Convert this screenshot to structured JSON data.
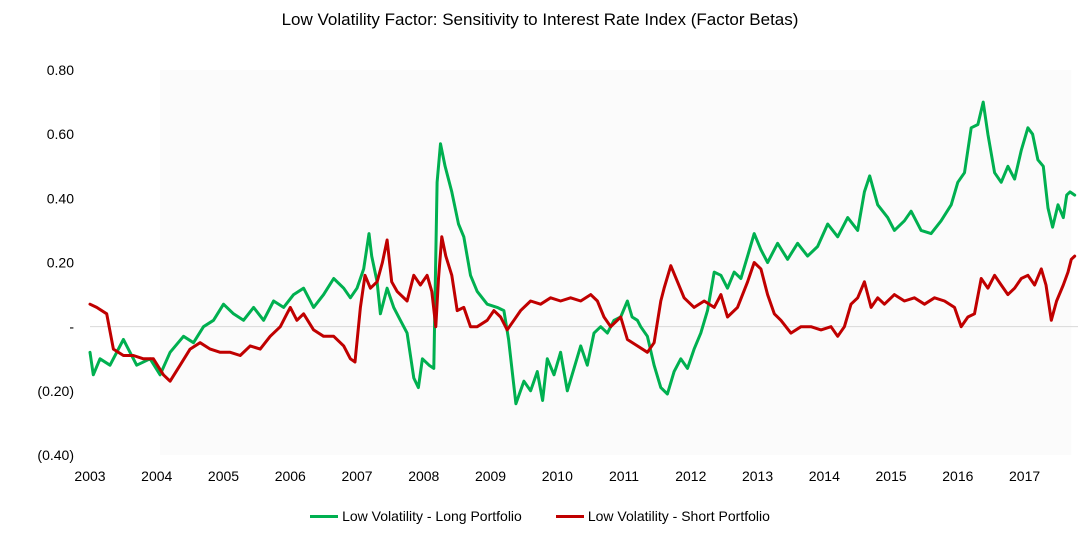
{
  "chart_data": {
    "type": "line",
    "title": "Low Volatility Factor: Sensitivity to Interest Rate Index (Factor Betas)",
    "xlabel": "",
    "ylabel": "",
    "xlim": [
      2003.0,
      2017.8
    ],
    "ylim": [
      -0.4,
      0.8
    ],
    "y_ticks": [
      {
        "value": 0.8,
        "label": "0.80"
      },
      {
        "value": 0.6,
        "label": "0.60"
      },
      {
        "value": 0.4,
        "label": "0.40"
      },
      {
        "value": 0.2,
        "label": "0.20"
      },
      {
        "value": 0.0,
        "label": "-"
      },
      {
        "value": -0.2,
        "label": "(0.20)"
      },
      {
        "value": -0.4,
        "label": "(0.40)"
      }
    ],
    "x_ticks": [
      "2003",
      "2004",
      "2005",
      "2006",
      "2007",
      "2008",
      "2009",
      "2010",
      "2011",
      "2012",
      "2013",
      "2014",
      "2015",
      "2016",
      "2017"
    ],
    "grid": false,
    "zero_line": true,
    "legend_position": "bottom",
    "series": [
      {
        "name": "Low Volatility - Long Portfolio",
        "color": "#00b050",
        "points": [
          [
            2003.0,
            -0.08
          ],
          [
            2003.05,
            -0.15
          ],
          [
            2003.15,
            -0.1
          ],
          [
            2003.3,
            -0.12
          ],
          [
            2003.5,
            -0.04
          ],
          [
            2003.7,
            -0.12
          ],
          [
            2003.9,
            -0.1
          ],
          [
            2004.05,
            -0.15
          ],
          [
            2004.2,
            -0.08
          ],
          [
            2004.4,
            -0.03
          ],
          [
            2004.55,
            -0.05
          ],
          [
            2004.7,
            0.0
          ],
          [
            2004.85,
            0.02
          ],
          [
            2005.0,
            0.07
          ],
          [
            2005.15,
            0.04
          ],
          [
            2005.3,
            0.02
          ],
          [
            2005.45,
            0.06
          ],
          [
            2005.6,
            0.02
          ],
          [
            2005.75,
            0.08
          ],
          [
            2005.9,
            0.06
          ],
          [
            2006.05,
            0.1
          ],
          [
            2006.2,
            0.12
          ],
          [
            2006.35,
            0.06
          ],
          [
            2006.5,
            0.1
          ],
          [
            2006.65,
            0.15
          ],
          [
            2006.8,
            0.12
          ],
          [
            2006.9,
            0.09
          ],
          [
            2007.0,
            0.12
          ],
          [
            2007.1,
            0.18
          ],
          [
            2007.18,
            0.29
          ],
          [
            2007.22,
            0.22
          ],
          [
            2007.3,
            0.14
          ],
          [
            2007.35,
            0.04
          ],
          [
            2007.45,
            0.12
          ],
          [
            2007.55,
            0.06
          ],
          [
            2007.65,
            0.02
          ],
          [
            2007.75,
            -0.02
          ],
          [
            2007.85,
            -0.16
          ],
          [
            2007.92,
            -0.19
          ],
          [
            2007.98,
            -0.1
          ],
          [
            2008.08,
            -0.12
          ],
          [
            2008.15,
            -0.13
          ],
          [
            2008.2,
            0.45
          ],
          [
            2008.25,
            0.57
          ],
          [
            2008.32,
            0.5
          ],
          [
            2008.42,
            0.42
          ],
          [
            2008.52,
            0.32
          ],
          [
            2008.6,
            0.28
          ],
          [
            2008.7,
            0.16
          ],
          [
            2008.8,
            0.11
          ],
          [
            2008.95,
            0.07
          ],
          [
            2009.1,
            0.06
          ],
          [
            2009.2,
            0.05
          ],
          [
            2009.27,
            -0.04
          ],
          [
            2009.33,
            -0.15
          ],
          [
            2009.38,
            -0.24
          ],
          [
            2009.5,
            -0.17
          ],
          [
            2009.6,
            -0.2
          ],
          [
            2009.7,
            -0.14
          ],
          [
            2009.78,
            -0.23
          ],
          [
            2009.85,
            -0.1
          ],
          [
            2009.95,
            -0.15
          ],
          [
            2010.05,
            -0.08
          ],
          [
            2010.15,
            -0.2
          ],
          [
            2010.25,
            -0.13
          ],
          [
            2010.35,
            -0.06
          ],
          [
            2010.45,
            -0.12
          ],
          [
            2010.55,
            -0.02
          ],
          [
            2010.65,
            0.0
          ],
          [
            2010.75,
            -0.02
          ],
          [
            2010.85,
            0.02
          ],
          [
            2010.95,
            0.03
          ],
          [
            2011.05,
            0.08
          ],
          [
            2011.12,
            0.03
          ],
          [
            2011.2,
            0.02
          ],
          [
            2011.25,
            0.0
          ],
          [
            2011.35,
            -0.03
          ],
          [
            2011.45,
            -0.12
          ],
          [
            2011.55,
            -0.19
          ],
          [
            2011.65,
            -0.21
          ],
          [
            2011.75,
            -0.14
          ],
          [
            2011.85,
            -0.1
          ],
          [
            2011.95,
            -0.13
          ],
          [
            2012.05,
            -0.07
          ],
          [
            2012.15,
            -0.02
          ],
          [
            2012.25,
            0.05
          ],
          [
            2012.35,
            0.17
          ],
          [
            2012.45,
            0.16
          ],
          [
            2012.55,
            0.12
          ],
          [
            2012.65,
            0.17
          ],
          [
            2012.75,
            0.15
          ],
          [
            2012.85,
            0.22
          ],
          [
            2012.95,
            0.29
          ],
          [
            2013.05,
            0.24
          ],
          [
            2013.15,
            0.2
          ],
          [
            2013.3,
            0.26
          ],
          [
            2013.45,
            0.21
          ],
          [
            2013.6,
            0.26
          ],
          [
            2013.75,
            0.22
          ],
          [
            2013.9,
            0.25
          ],
          [
            2014.05,
            0.32
          ],
          [
            2014.2,
            0.28
          ],
          [
            2014.35,
            0.34
          ],
          [
            2014.5,
            0.3
          ],
          [
            2014.6,
            0.42
          ],
          [
            2014.68,
            0.47
          ],
          [
            2014.8,
            0.38
          ],
          [
            2014.95,
            0.34
          ],
          [
            2015.05,
            0.3
          ],
          [
            2015.2,
            0.33
          ],
          [
            2015.3,
            0.36
          ],
          [
            2015.45,
            0.3
          ],
          [
            2015.6,
            0.29
          ],
          [
            2015.75,
            0.33
          ],
          [
            2015.9,
            0.38
          ],
          [
            2016.0,
            0.45
          ],
          [
            2016.1,
            0.48
          ],
          [
            2016.2,
            0.62
          ],
          [
            2016.3,
            0.63
          ],
          [
            2016.38,
            0.7
          ],
          [
            2016.45,
            0.6
          ],
          [
            2016.55,
            0.48
          ],
          [
            2016.65,
            0.45
          ],
          [
            2016.75,
            0.5
          ],
          [
            2016.85,
            0.46
          ],
          [
            2016.95,
            0.55
          ],
          [
            2017.05,
            0.62
          ],
          [
            2017.12,
            0.6
          ],
          [
            2017.2,
            0.52
          ],
          [
            2017.28,
            0.5
          ],
          [
            2017.35,
            0.37
          ],
          [
            2017.42,
            0.31
          ],
          [
            2017.5,
            0.38
          ],
          [
            2017.58,
            0.34
          ],
          [
            2017.63,
            0.41
          ],
          [
            2017.68,
            0.42
          ],
          [
            2017.75,
            0.41
          ]
        ]
      },
      {
        "name": "Low Volatility - Short Portfolio",
        "color": "#c00000",
        "points": [
          [
            2003.0,
            0.07
          ],
          [
            2003.1,
            0.06
          ],
          [
            2003.25,
            0.04
          ],
          [
            2003.35,
            -0.07
          ],
          [
            2003.5,
            -0.09
          ],
          [
            2003.65,
            -0.09
          ],
          [
            2003.8,
            -0.1
          ],
          [
            2003.95,
            -0.1
          ],
          [
            2004.1,
            -0.15
          ],
          [
            2004.2,
            -0.17
          ],
          [
            2004.35,
            -0.12
          ],
          [
            2004.5,
            -0.07
          ],
          [
            2004.65,
            -0.05
          ],
          [
            2004.8,
            -0.07
          ],
          [
            2004.95,
            -0.08
          ],
          [
            2005.1,
            -0.08
          ],
          [
            2005.25,
            -0.09
          ],
          [
            2005.4,
            -0.06
          ],
          [
            2005.55,
            -0.07
          ],
          [
            2005.7,
            -0.03
          ],
          [
            2005.85,
            0.0
          ],
          [
            2005.95,
            0.04
          ],
          [
            2006.0,
            0.06
          ],
          [
            2006.1,
            0.02
          ],
          [
            2006.2,
            0.04
          ],
          [
            2006.35,
            -0.01
          ],
          [
            2006.5,
            -0.03
          ],
          [
            2006.65,
            -0.03
          ],
          [
            2006.8,
            -0.06
          ],
          [
            2006.9,
            -0.1
          ],
          [
            2006.97,
            -0.11
          ],
          [
            2007.05,
            0.06
          ],
          [
            2007.12,
            0.16
          ],
          [
            2007.2,
            0.12
          ],
          [
            2007.3,
            0.14
          ],
          [
            2007.38,
            0.2
          ],
          [
            2007.45,
            0.27
          ],
          [
            2007.52,
            0.14
          ],
          [
            2007.6,
            0.11
          ],
          [
            2007.75,
            0.08
          ],
          [
            2007.85,
            0.16
          ],
          [
            2007.95,
            0.13
          ],
          [
            2008.05,
            0.16
          ],
          [
            2008.12,
            0.11
          ],
          [
            2008.18,
            0.0
          ],
          [
            2008.22,
            0.15
          ],
          [
            2008.27,
            0.28
          ],
          [
            2008.33,
            0.22
          ],
          [
            2008.42,
            0.16
          ],
          [
            2008.5,
            0.05
          ],
          [
            2008.6,
            0.06
          ],
          [
            2008.7,
            0.0
          ],
          [
            2008.8,
            0.0
          ],
          [
            2008.95,
            0.02
          ],
          [
            2009.05,
            0.05
          ],
          [
            2009.15,
            0.03
          ],
          [
            2009.25,
            -0.01
          ],
          [
            2009.35,
            0.02
          ],
          [
            2009.45,
            0.05
          ],
          [
            2009.6,
            0.08
          ],
          [
            2009.75,
            0.07
          ],
          [
            2009.9,
            0.09
          ],
          [
            2010.05,
            0.08
          ],
          [
            2010.2,
            0.09
          ],
          [
            2010.35,
            0.08
          ],
          [
            2010.5,
            0.1
          ],
          [
            2010.6,
            0.08
          ],
          [
            2010.7,
            0.03
          ],
          [
            2010.8,
            0.0
          ],
          [
            2010.95,
            0.03
          ],
          [
            2011.05,
            -0.04
          ],
          [
            2011.2,
            -0.06
          ],
          [
            2011.35,
            -0.08
          ],
          [
            2011.45,
            -0.05
          ],
          [
            2011.55,
            0.08
          ],
          [
            2011.6,
            0.12
          ],
          [
            2011.7,
            0.19
          ],
          [
            2011.8,
            0.14
          ],
          [
            2011.9,
            0.09
          ],
          [
            2012.05,
            0.06
          ],
          [
            2012.2,
            0.08
          ],
          [
            2012.35,
            0.06
          ],
          [
            2012.45,
            0.1
          ],
          [
            2012.55,
            0.03
          ],
          [
            2012.7,
            0.06
          ],
          [
            2012.85,
            0.14
          ],
          [
            2012.95,
            0.2
          ],
          [
            2013.05,
            0.18
          ],
          [
            2013.15,
            0.1
          ],
          [
            2013.25,
            0.04
          ],
          [
            2013.35,
            0.02
          ],
          [
            2013.5,
            -0.02
          ],
          [
            2013.65,
            0.0
          ],
          [
            2013.8,
            0.0
          ],
          [
            2013.95,
            -0.01
          ],
          [
            2014.1,
            0.0
          ],
          [
            2014.2,
            -0.03
          ],
          [
            2014.3,
            0.0
          ],
          [
            2014.4,
            0.07
          ],
          [
            2014.5,
            0.09
          ],
          [
            2014.6,
            0.14
          ],
          [
            2014.7,
            0.06
          ],
          [
            2014.8,
            0.09
          ],
          [
            2014.9,
            0.07
          ],
          [
            2015.05,
            0.1
          ],
          [
            2015.2,
            0.08
          ],
          [
            2015.35,
            0.09
          ],
          [
            2015.5,
            0.07
          ],
          [
            2015.65,
            0.09
          ],
          [
            2015.8,
            0.08
          ],
          [
            2015.95,
            0.06
          ],
          [
            2016.05,
            0.0
          ],
          [
            2016.15,
            0.03
          ],
          [
            2016.25,
            0.04
          ],
          [
            2016.35,
            0.15
          ],
          [
            2016.45,
            0.12
          ],
          [
            2016.55,
            0.16
          ],
          [
            2016.65,
            0.13
          ],
          [
            2016.75,
            0.1
          ],
          [
            2016.85,
            0.12
          ],
          [
            2016.95,
            0.15
          ],
          [
            2017.05,
            0.16
          ],
          [
            2017.15,
            0.13
          ],
          [
            2017.25,
            0.18
          ],
          [
            2017.32,
            0.13
          ],
          [
            2017.4,
            0.02
          ],
          [
            2017.48,
            0.08
          ],
          [
            2017.58,
            0.13
          ],
          [
            2017.65,
            0.17
          ],
          [
            2017.7,
            0.21
          ],
          [
            2017.75,
            0.22
          ]
        ]
      }
    ]
  }
}
